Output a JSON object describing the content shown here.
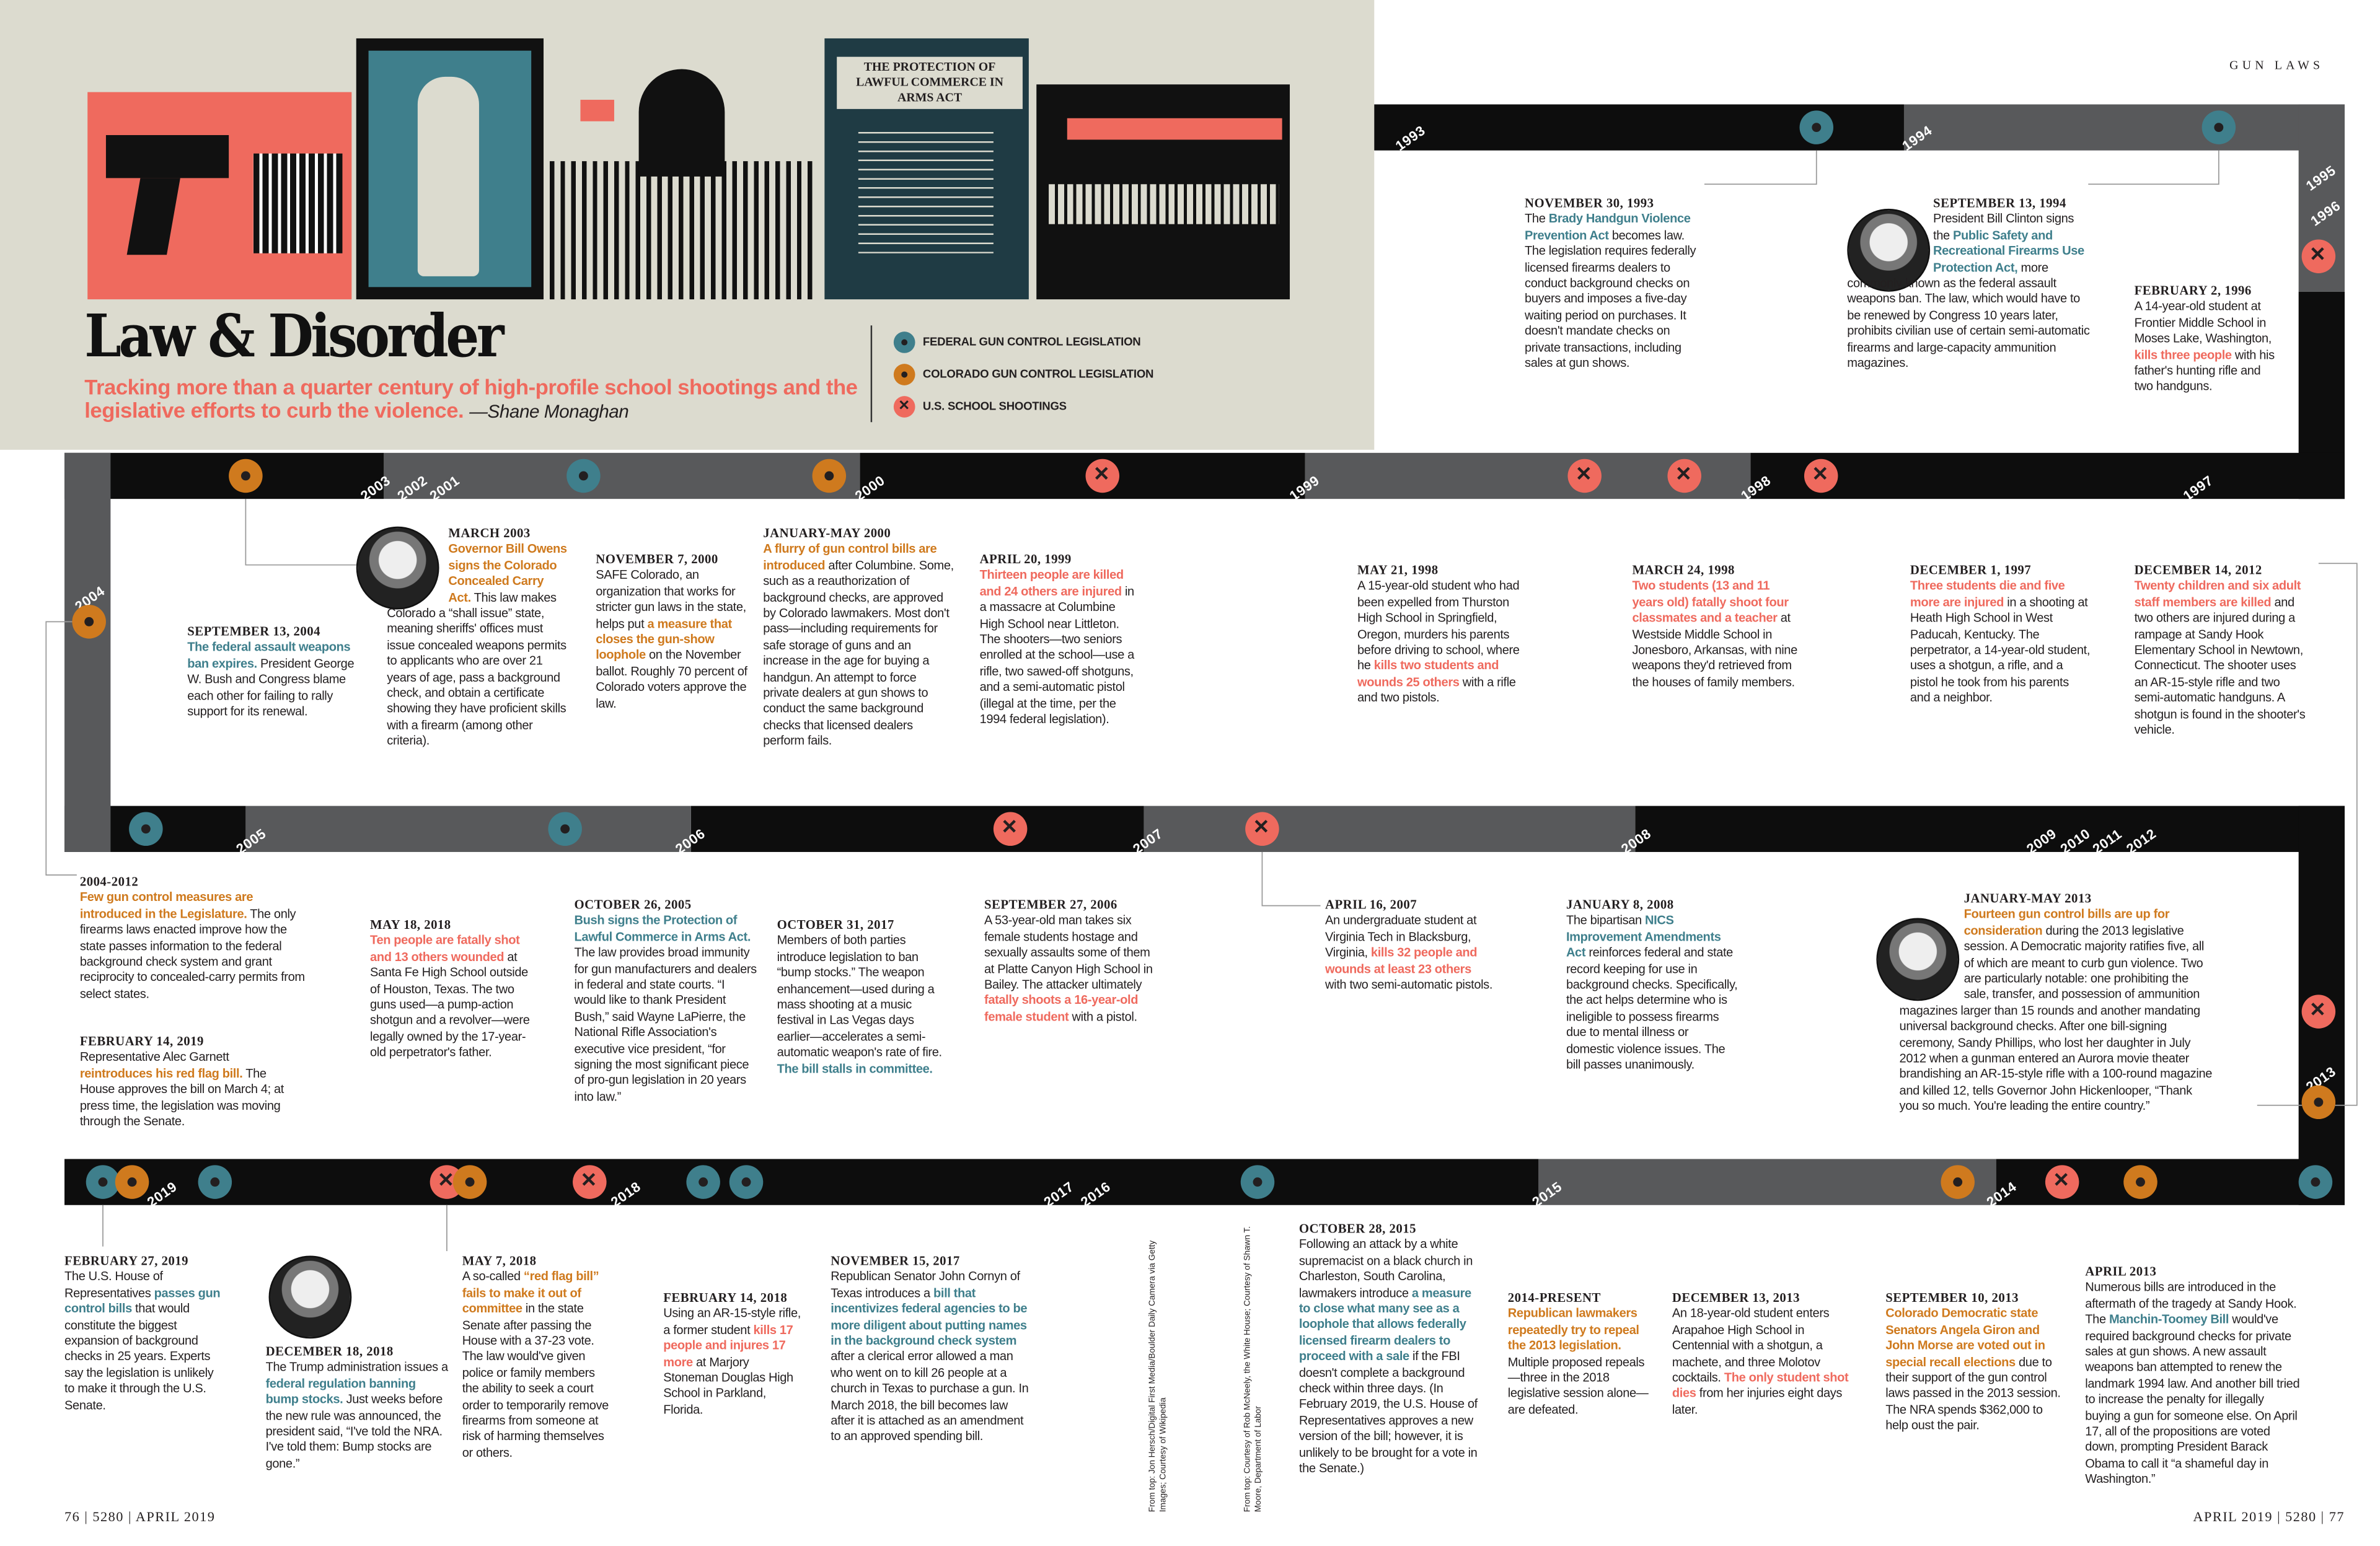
{
  "kicker": "GUN LAWS",
  "title": "Law & Disorder",
  "subtitle": "Tracking more than a quarter century of high-profile school shootings and the legislative efforts to curb the violence.",
  "byline": "—Shane Monaghan",
  "art": {
    "book_title": "THE PROTECTION OF LAWFUL COMMERCE IN ARMS ACT"
  },
  "colors": {
    "federal": "#3f7f8c",
    "colorado": "#cf7a1e",
    "shooting": "#ef6a5e",
    "beige": "#dcdbcf",
    "band_black": "#0d0d0d",
    "band_gray": "#58595b"
  },
  "legend": [
    {
      "label": "FEDERAL GUN CONTROL LEGISLATION",
      "type": "federal",
      "icon": "dot-icon"
    },
    {
      "label": "COLORADO GUN CONTROL LEGISLATION",
      "type": "colorado",
      "icon": "dot-icon"
    },
    {
      "label": "U.S. SCHOOL SHOOTINGS",
      "type": "shooting",
      "icon": "x-icon"
    }
  ],
  "years": [
    "1993",
    "1994",
    "1995",
    "1996",
    "2003",
    "2002",
    "2001",
    "2000",
    "1999",
    "1998",
    "1997",
    "2004",
    "2005",
    "2006",
    "2007",
    "2008",
    "2009",
    "2010",
    "2011",
    "2012",
    "2013",
    "2019",
    "2018",
    "2017",
    "2016",
    "2015",
    "2014"
  ],
  "markers": [
    "federal",
    "federal",
    "shooting",
    "colorado",
    "federal",
    "colorado",
    "shooting",
    "shooting",
    "shooting",
    "shooting",
    "colorado",
    "federal",
    "federal",
    "shooting",
    "shooting",
    "shooting",
    "colorado",
    "federal",
    "colorado",
    "federal",
    "shooting",
    "colorado",
    "shooting",
    "federal",
    "federal",
    "federal",
    "colorado",
    "shooting",
    "colorado",
    "federal"
  ],
  "events": [
    {
      "date": "NOVEMBER 30, 1993",
      "body": [
        [
          "The ",
          ""
        ],
        [
          "Brady Handgun Violence Prevention Act",
          "t"
        ],
        [
          " becomes law. The legislation requires federally licensed firearms dealers to conduct background checks on buyers and imposes a five-day waiting period on purchases. It doesn't mandate checks on private transactions, including sales at gun shows.",
          ""
        ]
      ]
    },
    {
      "date": "SEPTEMBER 13, 1994",
      "body": [
        [
          "President Bill Clinton signs the ",
          ""
        ],
        [
          "Public Safety and Recreational Firearms Use Protection Act,",
          "t"
        ],
        [
          " more commonly known as the federal assault weapons ban. The law, which would have to be renewed by Congress 10 years later, prohibits civilian use of certain semi-automatic firearms and large-capacity ammunition magazines.",
          ""
        ]
      ]
    },
    {
      "date": "FEBRUARY 2, 1996",
      "body": [
        [
          "A 14-year-old student at Frontier Middle School in Moses Lake, Washington, ",
          ""
        ],
        [
          "kills three people",
          "r"
        ],
        [
          " with his father's hunting rifle and two handguns.",
          ""
        ]
      ]
    },
    {
      "date": "SEPTEMBER 13, 2004",
      "body": [
        [
          "The federal assault weapons ban expires.",
          "t"
        ],
        [
          " President George W. Bush and Congress blame each other for failing to rally support for its renewal.",
          ""
        ]
      ]
    },
    {
      "date": "MARCH 2003",
      "body": [
        [
          "Governor Bill Owens signs the Colorado Concealed Carry Act.",
          "o"
        ],
        [
          " This law makes Colorado a “shall issue” state, meaning sheriffs' offices must issue concealed weapons permits to applicants who are over 21 years of age, pass a background check, and obtain a certificate showing they have proficient skills with a firearm (among other criteria).",
          ""
        ]
      ]
    },
    {
      "date": "NOVEMBER 7, 2000",
      "body": [
        [
          "SAFE Colorado, an organization that works for stricter gun laws in the state, helps put ",
          ""
        ],
        [
          "a measure that closes the gun-show loophole",
          "o"
        ],
        [
          " on the November ballot. Roughly 70 percent of Colorado voters approve the law.",
          ""
        ]
      ]
    },
    {
      "date": "JANUARY-MAY 2000",
      "body": [
        [
          "A flurry of gun control bills are introduced",
          "o"
        ],
        [
          " after Columbine. Some, such as a reauthorization of background checks, are approved by Colorado lawmakers. Most don't pass—including requirements for safe storage of guns and an increase in the age for buying a handgun. An attempt to force private dealers at gun shows to conduct the same background checks that licensed dealers perform fails.",
          ""
        ]
      ]
    },
    {
      "date": "APRIL 20, 1999",
      "body": [
        [
          "Thirteen people are killed and 24 others are injured",
          "r"
        ],
        [
          " in a massacre at Columbine High School near Littleton. The shooters—two seniors enrolled at the school—use a rifle, two sawed-off shotguns, and a semi-automatic pistol (illegal at the time, per the 1994 federal legislation).",
          ""
        ]
      ]
    },
    {
      "date": "MAY 21, 1998",
      "body": [
        [
          "A 15-year-old student who had been expelled from Thurston High School in Springfield, Oregon, murders his parents before driving to school, where he ",
          ""
        ],
        [
          "kills two students and wounds 25 others",
          "r"
        ],
        [
          " with a rifle and two pistols.",
          ""
        ]
      ]
    },
    {
      "date": "MARCH 24, 1998",
      "body": [
        [
          "Two students (13 and 11 years old) fatally shoot four classmates and a teacher",
          "r"
        ],
        [
          " at Westside Middle School in Jonesboro, Arkansas, with nine weapons they'd retrieved from the houses of family members.",
          ""
        ]
      ]
    },
    {
      "date": "DECEMBER 1, 1997",
      "body": [
        [
          "Three students die and five more are injured",
          "r"
        ],
        [
          " in a shooting at Heath High School in West Paducah, Kentucky. The perpetrator, a 14-year-old student, uses a shotgun, a rifle, and a pistol he took from his parents and a neighbor.",
          ""
        ]
      ]
    },
    {
      "date": "DECEMBER 14, 2012",
      "body": [
        [
          "Twenty children and six adult staff members are killed",
          "r"
        ],
        [
          " and two others are injured during a rampage at Sandy Hook Elementary School in Newtown, Connecticut. The shooter uses an AR-15-style rifle and two semi-automatic handguns. A shotgun is found in the shooter's vehicle.",
          ""
        ]
      ]
    },
    {
      "date": "2004-2012",
      "body": [
        [
          "Few gun control measures are introduced in the Legislature.",
          "o"
        ],
        [
          " The only firearms laws enacted improve how the state passes information to the federal background check system and grant reciprocity to concealed-carry permits from select states.",
          ""
        ]
      ]
    },
    {
      "date": "FEBRUARY 14, 2019",
      "body": [
        [
          "Representative Alec Garnett ",
          ""
        ],
        [
          "reintroduces his red flag bill.",
          "o"
        ],
        [
          " The House approves the bill on March 4; at press time, the legislation was moving through the Senate.",
          ""
        ]
      ]
    },
    {
      "date": "MAY 18, 2018",
      "body": [
        [
          "Ten people are fatally shot and 13 others wounded",
          "r"
        ],
        [
          " at Santa Fe High School outside of Houston, Texas. The two guns used—a pump-action shotgun and a revolver—were legally owned by the 17-year-old perpetrator's father.",
          ""
        ]
      ]
    },
    {
      "date": "OCTOBER 26, 2005",
      "body": [
        [
          "Bush signs the Protection of Lawful Commerce in Arms Act.",
          "t"
        ],
        [
          " The law provides broad immunity for gun manufacturers and dealers in federal and state courts. “I would like to thank President Bush,” said Wayne LaPierre, the National Rifle Association's executive vice president, “for signing the most significant piece of pro-gun legislation in 20 years into law.”",
          ""
        ]
      ]
    },
    {
      "date": "OCTOBER 31, 2017",
      "body": [
        [
          "Members of both parties introduce legislation to ban “bump stocks.” The weapon enhancement—used during a mass shooting at a music festival in Las Vegas days earlier—accelerates a semi-automatic weapon's rate of fire. ",
          ""
        ],
        [
          "The bill stalls in committee.",
          "t"
        ]
      ]
    },
    {
      "date": "SEPTEMBER 27, 2006",
      "body": [
        [
          "A 53-year-old man takes six female students hostage and sexually assaults some of them at Platte Canyon High School in Bailey. The attacker ultimately ",
          ""
        ],
        [
          "fatally shoots a 16-year-old female student",
          "r"
        ],
        [
          " with a pistol.",
          ""
        ]
      ]
    },
    {
      "date": "APRIL 16, 2007",
      "body": [
        [
          "An undergraduate student at Virginia Tech in Blacksburg, Virginia, ",
          ""
        ],
        [
          "kills 32 people and wounds at least 23 others",
          "r"
        ],
        [
          " with two semi-automatic pistols.",
          ""
        ]
      ]
    },
    {
      "date": "JANUARY 8, 2008",
      "body": [
        [
          "The bipartisan ",
          ""
        ],
        [
          "NICS Improvement Amendments Act",
          "t"
        ],
        [
          " reinforces federal and state record keeping for use in background checks. Specifically, the act helps determine who is ineligible to possess firearms due to mental illness or domestic violence issues. The bill passes unanimously.",
          ""
        ]
      ]
    },
    {
      "date": "JANUARY-MAY 2013",
      "body": [
        [
          "Fourteen gun control bills are up for consideration",
          "o"
        ],
        [
          " during the 2013 legislative session. A Democratic majority ratifies five, all of which are meant to curb gun violence. Two are particularly notable: one prohibiting the sale, transfer, and possession of ammunition magazines larger than 15 rounds and another mandating universal background checks. After one bill-signing ceremony, Sandy Phillips, who lost her daughter in July 2012 when a gunman entered an Aurora movie theater brandishing an AR-15-style rifle with a 100-round magazine and killed 12, tells Governor John Hickenlooper, “Thank you so much. You're leading the entire country.”",
          ""
        ]
      ]
    },
    {
      "date": "FEBRUARY 27, 2019",
      "body": [
        [
          "The U.S. House of Representatives ",
          ""
        ],
        [
          "passes gun control bills",
          "t"
        ],
        [
          " that would constitute the biggest expansion of background checks in 25 years. Experts say the legislation is unlikely to make it through the U.S. Senate.",
          ""
        ]
      ]
    },
    {
      "date": "DECEMBER 18, 2018",
      "body": [
        [
          "The Trump administration issues a ",
          ""
        ],
        [
          "federal regulation banning bump stocks.",
          "t"
        ],
        [
          " Just weeks before the new rule was announced, the president said, “I've told the NRA. I've told them: Bump stocks are gone.”",
          ""
        ]
      ]
    },
    {
      "date": "MAY 7, 2018",
      "body": [
        [
          "A so-called ",
          ""
        ],
        [
          "“red flag bill” fails to make it out of committee",
          "o"
        ],
        [
          " in the state Senate after passing the House with a 37-23 vote. The law would've given police or family members the ability to seek a court order to temporarily remove firearms from someone at risk of harming themselves or others.",
          ""
        ]
      ]
    },
    {
      "date": "FEBRUARY 14, 2018",
      "body": [
        [
          "Using an AR-15-style rifle, a former student ",
          ""
        ],
        [
          "kills 17 people and injures 17 more",
          "r"
        ],
        [
          " at Marjory Stoneman Douglas High School in Parkland, Florida.",
          ""
        ]
      ]
    },
    {
      "date": "NOVEMBER 15, 2017",
      "body": [
        [
          "Republican Senator John Cornyn of Texas introduces a ",
          ""
        ],
        [
          "bill that incentivizes federal agencies to be more diligent about putting names in the background check system",
          "t"
        ],
        [
          " after a clerical error allowed a man who went on to kill 26 people at a church in Texas to purchase a gun. In March 2018, the bill becomes law after it is attached as an amendment to an approved spending bill.",
          ""
        ]
      ]
    },
    {
      "date": "OCTOBER 28, 2015",
      "body": [
        [
          "Following an attack by a white supremacist on a black church in Charleston, South Carolina, lawmakers introduce ",
          ""
        ],
        [
          "a measure to close what many see as a loophole that allows federally licensed firearm dealers to proceed with a sale",
          "t"
        ],
        [
          " if the FBI doesn't complete a background check within three days. (In February 2019, the U.S. House of Representatives approves a new version of the bill; however, it is unlikely to be brought for a vote in the Senate.)",
          ""
        ]
      ]
    },
    {
      "date": "2014-PRESENT",
      "body": [
        [
          "Republican lawmakers repeatedly try to repeal the 2013 legislation.",
          "o"
        ],
        [
          " Multiple proposed repeals—three in the 2018 legislative session alone—are defeated.",
          ""
        ]
      ]
    },
    {
      "date": "DECEMBER 13, 2013",
      "body": [
        [
          "An 18-year-old student enters Arapahoe High School in Centennial with a shotgun, a machete, and three Molotov cocktails. ",
          ""
        ],
        [
          "The only student shot dies",
          "r"
        ],
        [
          " from her injuries eight days later.",
          ""
        ]
      ]
    },
    {
      "date": "SEPTEMBER 10, 2013",
      "body": [
        [
          "Colorado Democratic state Senators Angela Giron and John Morse are voted out in special recall elections",
          "o"
        ],
        [
          " due to their support of the gun control laws passed in the 2013 session. The NRA spends $362,000 to help oust the pair.",
          ""
        ]
      ]
    },
    {
      "date": "APRIL 2013",
      "body": [
        [
          "Numerous bills are introduced in the aftermath of the tragedy at Sandy Hook. The ",
          ""
        ],
        [
          "Manchin-Toomey Bill",
          "t"
        ],
        [
          " would've required background checks for private sales at gun shows. A new assault weapons ban attempted to renew the landmark 1994 law. And another bill tried to increase the penalty for illegally buying a gun for someone else. On April 17, all of the propositions are voted down, prompting President Barack Obama to call it “a shameful day in Washington.”",
          ""
        ]
      ]
    }
  ],
  "credits": [
    "From top: Jon Hersch/Digital First Media/Boulder Daily Camera via Getty Images; Courtesy of Wikipedia",
    "From top: Courtesy of Rob McNeely, the White House; Courtesy of Shawn T. Moore, Department of Labor"
  ],
  "footer": {
    "left": "76 | 5280 | APRIL 2019",
    "right": "APRIL 2019 | 5280 | 77"
  }
}
